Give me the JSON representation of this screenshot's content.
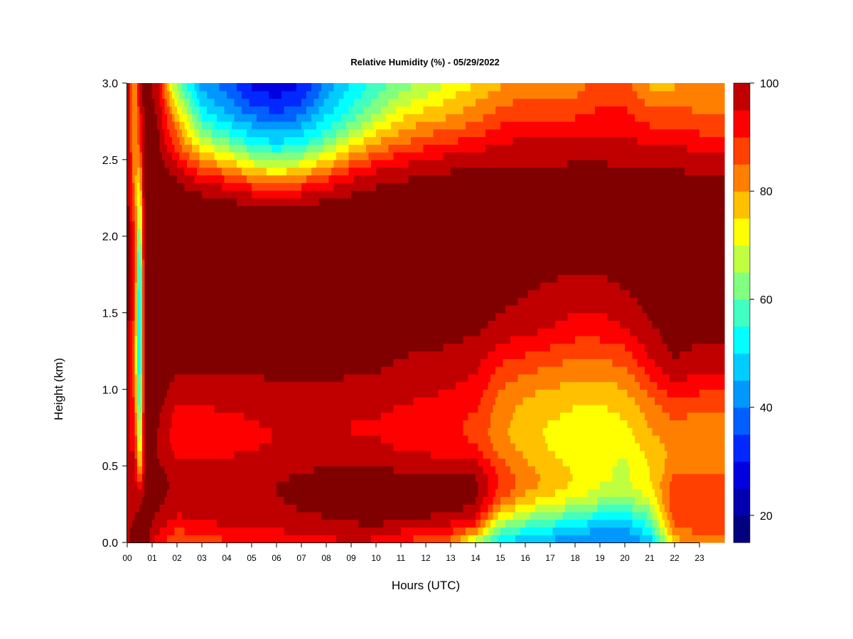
{
  "chart_data": {
    "type": "heatmap",
    "title": "Relative Humidity (%) - 05/29/2022",
    "xlabel": "Hours (UTC)",
    "ylabel": "Height (km)",
    "xlim": [
      0,
      24
    ],
    "ylim": [
      0.0,
      3.0
    ],
    "x_ticks": [
      "00",
      "01",
      "02",
      "03",
      "04",
      "05",
      "06",
      "07",
      "08",
      "09",
      "10",
      "11",
      "12",
      "13",
      "14",
      "15",
      "16",
      "17",
      "18",
      "19",
      "20",
      "21",
      "22",
      "23"
    ],
    "y_ticks": [
      "0.0",
      "0.5",
      "1.0",
      "1.5",
      "2.0",
      "2.5",
      "3.0"
    ],
    "y_tick_values": [
      0.0,
      0.5,
      1.0,
      1.5,
      2.0,
      2.5,
      3.0
    ],
    "grid": false,
    "colorbar": {
      "label_values": [
        "20",
        "40",
        "60",
        "80",
        "100"
      ],
      "label_positions": [
        20,
        40,
        60,
        80,
        100
      ],
      "range": [
        15,
        100
      ],
      "levels": [
        15,
        20,
        25,
        30,
        35,
        40,
        45,
        50,
        55,
        60,
        65,
        70,
        75,
        80,
        85,
        90,
        95,
        100
      ],
      "colors": [
        "#000080",
        "#0000b0",
        "#0000e0",
        "#0028ff",
        "#0060ff",
        "#0098ff",
        "#00ccff",
        "#00ffff",
        "#40ffc0",
        "#80ff80",
        "#c0ff40",
        "#ffff00",
        "#ffc000",
        "#ff8000",
        "#ff4000",
        "#ff0000",
        "#c00000",
        "#800000"
      ]
    },
    "profile_heights_km": [
      0.0,
      0.1,
      0.2,
      0.3,
      0.4,
      0.5,
      0.6,
      0.7,
      0.8,
      0.9,
      1.0,
      1.1,
      1.2,
      1.3,
      1.4,
      1.5,
      1.6,
      1.7,
      1.8,
      1.9,
      2.0,
      2.1,
      2.2,
      2.3,
      2.4,
      2.5,
      2.6,
      2.7,
      2.8,
      2.9,
      3.0
    ],
    "profiles": [
      {
        "hour": 0.0,
        "rh": [
          95,
          94,
          93,
          92,
          91,
          90,
          90,
          91,
          92,
          93,
          93,
          94,
          95,
          96,
          97,
          98,
          98,
          98,
          98,
          98,
          98,
          98,
          98,
          98,
          97,
          96,
          95,
          95,
          94,
          94,
          94
        ]
      },
      {
        "hour": 0.3,
        "rh": [
          96,
          96,
          95,
          94,
          93,
          92,
          90,
          88,
          86,
          84,
          82,
          80,
          80,
          80,
          82,
          84,
          86,
          88,
          88,
          86,
          84,
          82,
          80,
          78,
          76,
          75,
          74,
          74,
          73,
          73,
          73
        ]
      },
      {
        "hour": 0.5,
        "rh": [
          98,
          98,
          96,
          92,
          80,
          70,
          62,
          55,
          50,
          45,
          42,
          40,
          38,
          36,
          36,
          36,
          36,
          38,
          40,
          45,
          50,
          55,
          60,
          66,
          72,
          78,
          82,
          85,
          88,
          90,
          90
        ]
      },
      {
        "hour": 0.7,
        "rh": [
          99,
          99,
          98,
          97,
          96,
          95,
          95,
          96,
          97,
          98,
          99,
          99,
          99,
          99,
          99,
          99,
          99,
          99,
          99,
          99,
          99,
          99,
          99,
          99,
          99,
          98,
          97,
          97,
          97,
          97,
          97
        ]
      },
      {
        "hour": 1.2,
        "rh": [
          88,
          92,
          95,
          97,
          97,
          96,
          95,
          95,
          96,
          97,
          98,
          99,
          99,
          99,
          99,
          99,
          99,
          99,
          99,
          99,
          99,
          99,
          99,
          99,
          99,
          98,
          97,
          96,
          95,
          94,
          93
        ]
      },
      {
        "hour": 2.0,
        "rh": [
          80,
          86,
          91,
          93,
          94,
          92,
          88,
          87,
          88,
          90,
          92,
          95,
          97,
          98,
          98,
          98,
          98,
          99,
          99,
          99,
          99,
          99,
          99,
          97,
          94,
          88,
          82,
          78,
          72,
          64,
          56
        ]
      },
      {
        "hour": 3.0,
        "rh": [
          82,
          88,
          92,
          93,
          93,
          91,
          88,
          87,
          88,
          90,
          92,
          95,
          97,
          98,
          98,
          98,
          98,
          99,
          99,
          99,
          99,
          99,
          98,
          94,
          86,
          76,
          66,
          56,
          48,
          42,
          38
        ]
      },
      {
        "hour": 4.0,
        "rh": [
          84,
          90,
          93,
          94,
          94,
          92,
          89,
          88,
          89,
          91,
          93,
          95,
          97,
          98,
          98,
          98,
          98,
          99,
          99,
          99,
          99,
          99,
          97,
          92,
          82,
          70,
          58,
          48,
          40,
          36,
          32
        ]
      },
      {
        "hour": 5.0,
        "rh": [
          85,
          90,
          94,
          95,
          95,
          93,
          90,
          89,
          90,
          91,
          93,
          95,
          97,
          98,
          98,
          98,
          98,
          99,
          99,
          99,
          99,
          99,
          96,
          88,
          76,
          62,
          50,
          42,
          34,
          28,
          24
        ]
      },
      {
        "hour": 6.0,
        "rh": [
          86,
          91,
          94,
          95,
          95,
          93,
          91,
          90,
          91,
          92,
          94,
          96,
          97,
          98,
          98,
          98,
          98,
          99,
          99,
          99,
          99,
          98,
          95,
          86,
          72,
          58,
          46,
          38,
          30,
          25,
          22
        ]
      },
      {
        "hour": 7.0,
        "rh": [
          86,
          92,
          95,
          96,
          96,
          94,
          91,
          90,
          91,
          92,
          94,
          96,
          97,
          98,
          98,
          98,
          98,
          99,
          99,
          99,
          99,
          99,
          96,
          88,
          76,
          62,
          50,
          42,
          34,
          28,
          25
        ]
      },
      {
        "hour": 8.0,
        "rh": [
          88,
          93,
          96,
          97,
          97,
          95,
          91,
          90,
          91,
          92,
          94,
          96,
          97,
          98,
          98,
          98,
          98,
          99,
          99,
          99,
          99,
          99,
          97,
          91,
          82,
          70,
          58,
          50,
          44,
          40,
          36
        ]
      },
      {
        "hour": 9.0,
        "rh": [
          90,
          94,
          97,
          98,
          97,
          95,
          91,
          90,
          90,
          92,
          94,
          95,
          96,
          97,
          98,
          98,
          98,
          99,
          99,
          99,
          99,
          99,
          98,
          94,
          88,
          78,
          68,
          58,
          52,
          48,
          45
        ]
      },
      {
        "hour": 10.0,
        "rh": [
          88,
          95,
          98,
          98,
          97,
          95,
          91,
          90,
          90,
          91,
          93,
          95,
          96,
          97,
          98,
          98,
          98,
          99,
          99,
          99,
          99,
          99,
          98,
          96,
          92,
          84,
          76,
          68,
          60,
          55,
          52
        ]
      },
      {
        "hour": 11.0,
        "rh": [
          84,
          92,
          97,
          98,
          97,
          94,
          90,
          89,
          89,
          90,
          92,
          94,
          95,
          96,
          97,
          98,
          98,
          99,
          99,
          99,
          99,
          99,
          98,
          97,
          94,
          88,
          80,
          74,
          68,
          62,
          58
        ]
      },
      {
        "hour": 12.0,
        "rh": [
          82,
          90,
          97,
          98,
          97,
          94,
          89,
          88,
          88,
          89,
          91,
          93,
          94,
          96,
          97,
          98,
          98,
          99,
          99,
          99,
          99,
          99,
          98,
          97,
          95,
          90,
          84,
          78,
          72,
          66,
          60
        ]
      },
      {
        "hour": 13.0,
        "rh": [
          78,
          88,
          96,
          98,
          97,
          93,
          88,
          86,
          86,
          88,
          90,
          92,
          94,
          95,
          97,
          98,
          98,
          98,
          99,
          99,
          99,
          99,
          98,
          97,
          96,
          92,
          86,
          80,
          74,
          70,
          66
        ]
      },
      {
        "hour": 14.0,
        "rh": [
          60,
          82,
          93,
          96,
          96,
          92,
          86,
          84,
          84,
          86,
          88,
          90,
          92,
          94,
          96,
          97,
          98,
          98,
          99,
          99,
          99,
          99,
          98,
          97,
          96,
          93,
          88,
          82,
          78,
          74,
          70
        ]
      },
      {
        "hour": 15.0,
        "rh": [
          44,
          58,
          72,
          82,
          85,
          82,
          78,
          76,
          77,
          78,
          80,
          83,
          86,
          90,
          93,
          95,
          96,
          97,
          98,
          98,
          99,
          99,
          98,
          97,
          96,
          94,
          90,
          86,
          82,
          78,
          74
        ]
      },
      {
        "hour": 16.0,
        "rh": [
          40,
          52,
          64,
          74,
          78,
          76,
          74,
          72,
          72,
          74,
          76,
          80,
          84,
          88,
          92,
          94,
          95,
          96,
          97,
          98,
          99,
          99,
          98,
          97,
          96,
          94,
          92,
          88,
          84,
          80,
          76
        ]
      },
      {
        "hour": 17.0,
        "rh": [
          38,
          48,
          60,
          70,
          74,
          72,
          70,
          69,
          70,
          72,
          75,
          78,
          82,
          86,
          90,
          92,
          93,
          95,
          96,
          98,
          99,
          99,
          98,
          97,
          96,
          94,
          92,
          88,
          84,
          80,
          76
        ]
      },
      {
        "hour": 18.0,
        "rh": [
          36,
          44,
          56,
          66,
          70,
          69,
          68,
          68,
          69,
          70,
          73,
          76,
          80,
          84,
          88,
          90,
          92,
          94,
          96,
          97,
          99,
          99,
          98,
          97,
          96,
          95,
          92,
          88,
          84,
          80,
          78
        ]
      },
      {
        "hour": 19.0,
        "rh": [
          34,
          40,
          52,
          62,
          66,
          66,
          66,
          67,
          68,
          70,
          72,
          76,
          80,
          84,
          88,
          90,
          92,
          94,
          96,
          97,
          99,
          99,
          98,
          97,
          96,
          95,
          92,
          88,
          86,
          84,
          82
        ]
      },
      {
        "hour": 20.0,
        "rh": [
          34,
          40,
          50,
          60,
          64,
          64,
          66,
          68,
          70,
          72,
          75,
          78,
          82,
          86,
          90,
          92,
          94,
          96,
          97,
          98,
          99,
          99,
          98,
          97,
          96,
          94,
          92,
          88,
          86,
          84,
          82
        ]
      },
      {
        "hour": 21.0,
        "rh": [
          40,
          50,
          58,
          66,
          70,
          70,
          72,
          74,
          76,
          78,
          82,
          86,
          90,
          92,
          94,
          96,
          97,
          98,
          98,
          99,
          99,
          99,
          98,
          97,
          96,
          94,
          90,
          86,
          82,
          78,
          74
        ]
      },
      {
        "hour": 22.0,
        "rh": [
          72,
          80,
          84,
          84,
          82,
          78,
          76,
          78,
          80,
          84,
          88,
          92,
          95,
          97,
          98,
          98,
          98,
          99,
          99,
          99,
          99,
          99,
          98,
          97,
          96,
          94,
          90,
          86,
          82,
          78,
          74
        ]
      },
      {
        "hour": 23.0,
        "rh": [
          78,
          82,
          84,
          84,
          82,
          78,
          76,
          77,
          78,
          82,
          86,
          90,
          93,
          95,
          97,
          98,
          98,
          99,
          99,
          99,
          99,
          99,
          98,
          97,
          95,
          92,
          88,
          84,
          80,
          78,
          76
        ]
      },
      {
        "hour": 23.8,
        "rh": [
          78,
          82,
          84,
          84,
          82,
          78,
          76,
          77,
          78,
          82,
          86,
          90,
          93,
          95,
          97,
          98,
          98,
          99,
          99,
          99,
          99,
          99,
          98,
          97,
          95,
          92,
          88,
          84,
          80,
          78,
          76
        ]
      }
    ]
  }
}
